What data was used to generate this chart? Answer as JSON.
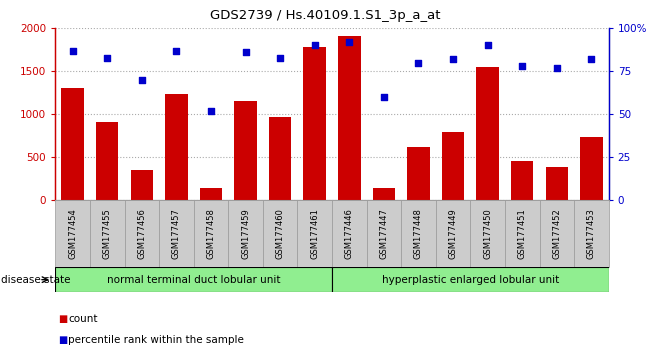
{
  "title": "GDS2739 / Hs.40109.1.S1_3p_a_at",
  "categories": [
    "GSM177454",
    "GSM177455",
    "GSM177456",
    "GSM177457",
    "GSM177458",
    "GSM177459",
    "GSM177460",
    "GSM177461",
    "GSM177446",
    "GSM177447",
    "GSM177448",
    "GSM177449",
    "GSM177450",
    "GSM177451",
    "GSM177452",
    "GSM177453"
  ],
  "bar_values": [
    1300,
    910,
    350,
    1240,
    140,
    1150,
    970,
    1780,
    1910,
    140,
    620,
    790,
    1545,
    460,
    390,
    730
  ],
  "dot_values": [
    87,
    83,
    70,
    87,
    52,
    86,
    83,
    90,
    92,
    60,
    80,
    82,
    90,
    78,
    77,
    82
  ],
  "bar_color": "#cc0000",
  "dot_color": "#0000cc",
  "group1_label": "normal terminal duct lobular unit",
  "group2_label": "hyperplastic enlarged lobular unit",
  "group1_count": 8,
  "group2_count": 8,
  "group1_color": "#90ee90",
  "group2_color": "#90ee90",
  "legend_count_label": "count",
  "legend_pct_label": "percentile rank within the sample",
  "disease_state_label": "disease state",
  "ylim_left": [
    0,
    2000
  ],
  "ylim_right": [
    0,
    100
  ],
  "yticks_left": [
    0,
    500,
    1000,
    1500,
    2000
  ],
  "ytick_labels_left": [
    "0",
    "500",
    "1000",
    "1500",
    "2000"
  ],
  "yticks_right": [
    0,
    25,
    50,
    75,
    100
  ],
  "ytick_labels_right": [
    "0",
    "25",
    "50",
    "75",
    "100%"
  ],
  "tick_area_color": "#cccccc",
  "grid_color": "#aaaaaa",
  "spine_color": "#888888"
}
